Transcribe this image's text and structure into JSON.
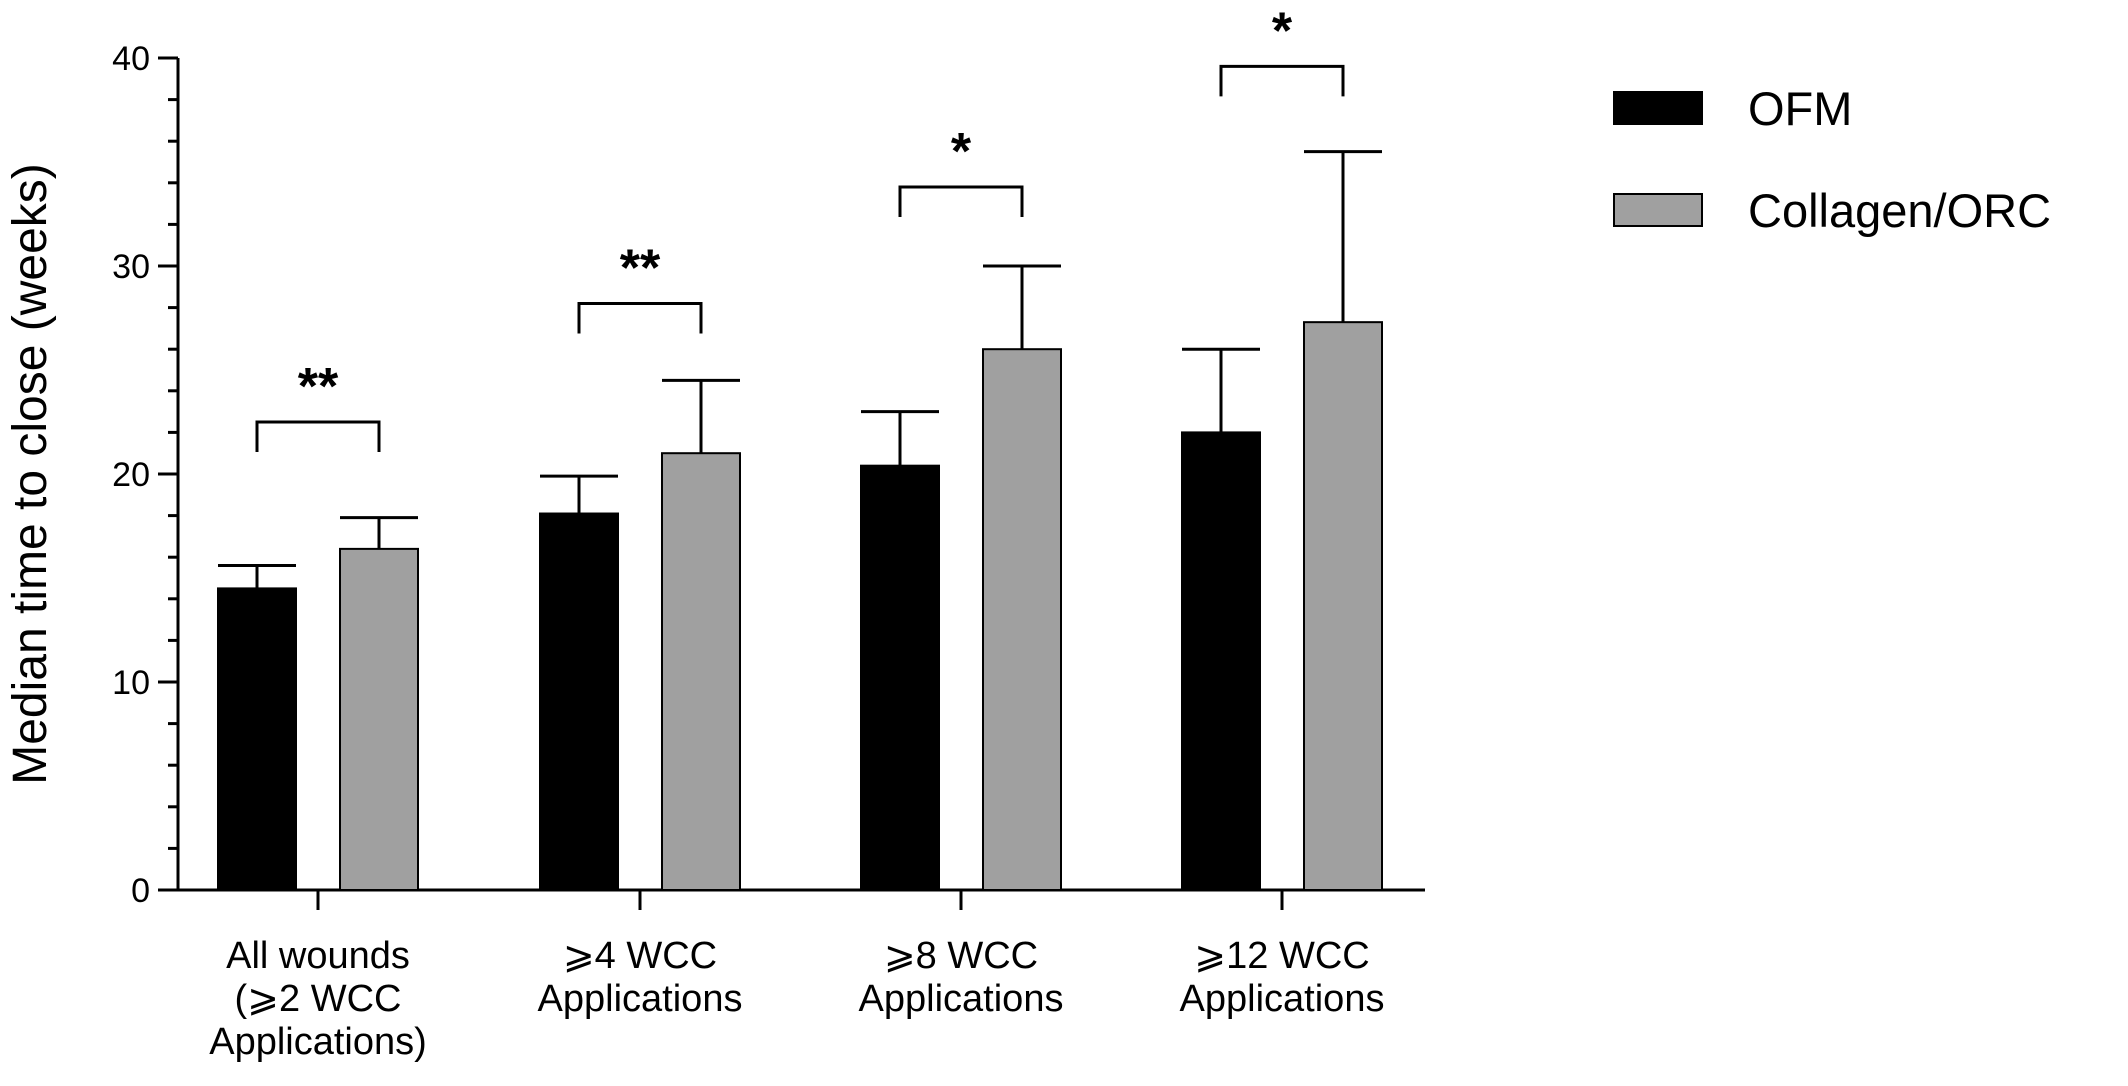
{
  "chart_data": {
    "type": "bar",
    "ylabel": "Median time to close (weeks)",
    "xlabel": "",
    "ylim": [
      0,
      40
    ],
    "yticks": [
      0,
      10,
      20,
      30,
      40
    ],
    "grid": false,
    "legend_position": "top-right",
    "categories": [
      [
        "All wounds",
        "(⩾2 WCC",
        "Applications)"
      ],
      [
        "⩾4 WCC",
        "Applications"
      ],
      [
        "⩾8 WCC",
        "Applications"
      ],
      [
        "⩾12 WCC",
        "Applications"
      ]
    ],
    "series": [
      {
        "name": "OFM",
        "color": "#000000",
        "values": [
          14.5,
          18.1,
          20.4,
          22.0
        ],
        "error_upper": [
          15.6,
          19.9,
          23.0,
          26.0
        ]
      },
      {
        "name": "Collagen/ORC",
        "color": "#a0a0a0",
        "values": [
          16.4,
          21.0,
          26.0,
          27.3
        ],
        "error_upper": [
          17.9,
          24.5,
          30.0,
          35.5
        ]
      }
    ],
    "significance": [
      "**",
      "**",
      "*",
      "*"
    ]
  }
}
